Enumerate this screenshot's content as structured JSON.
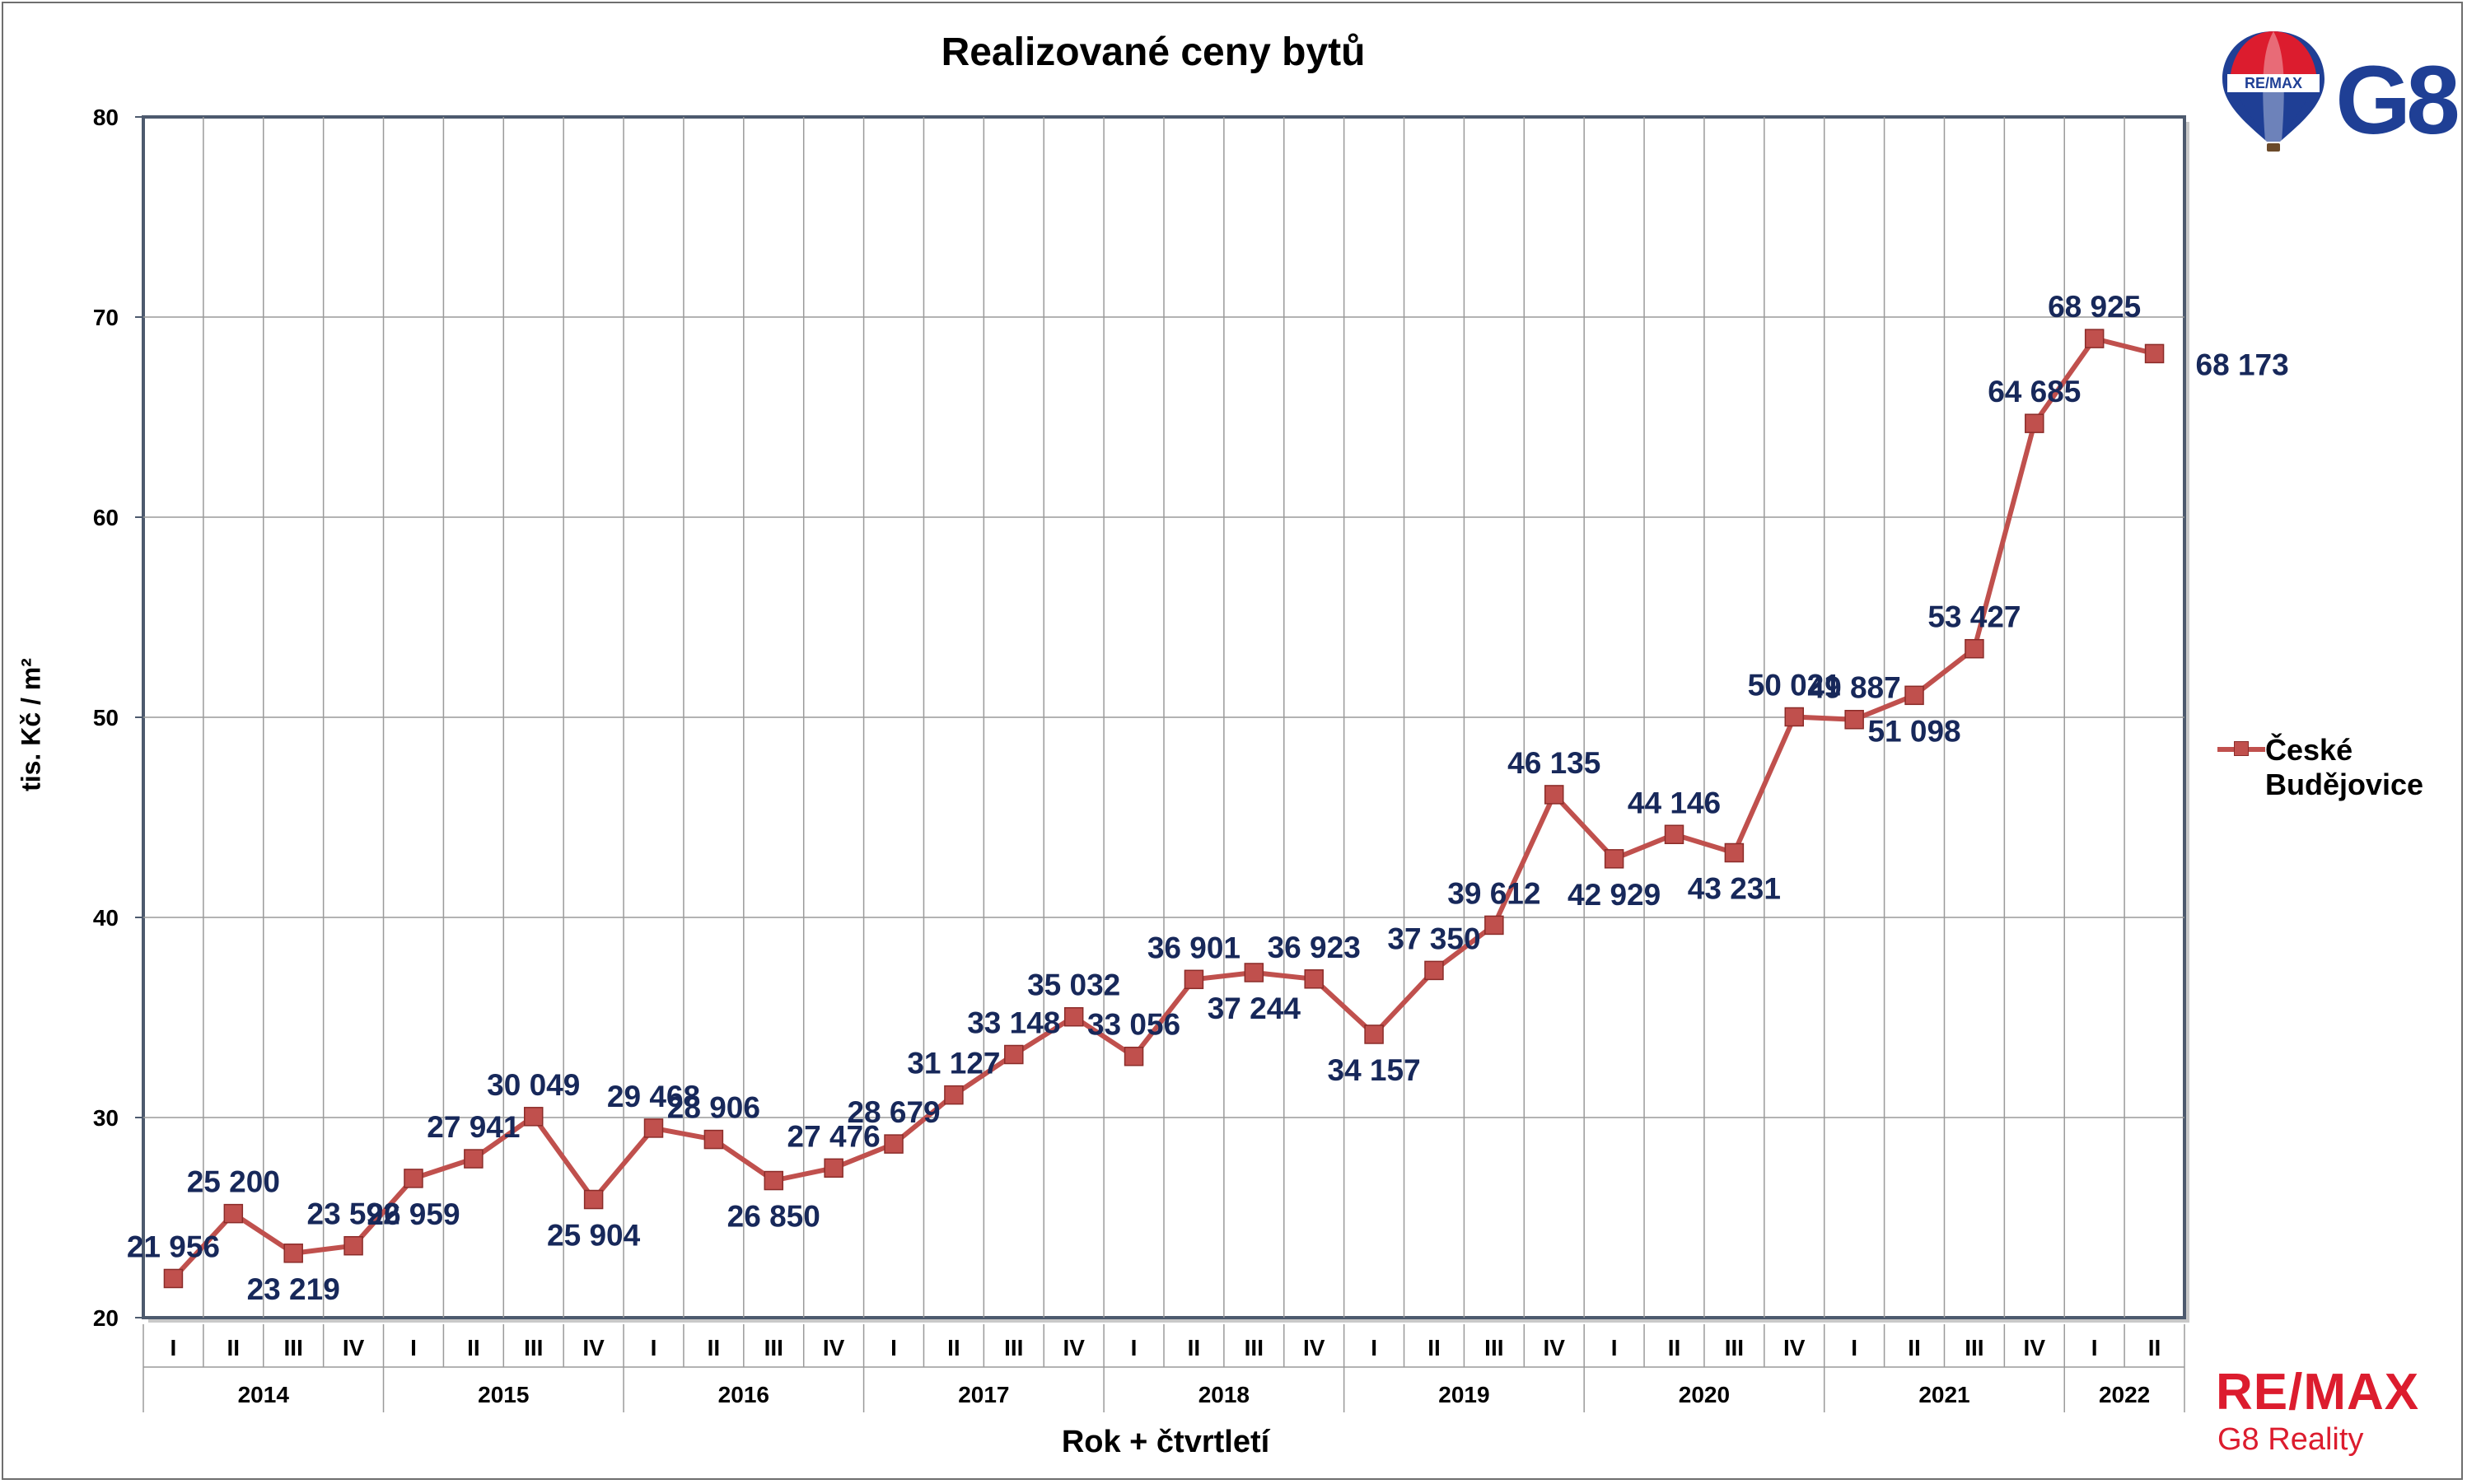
{
  "chart_data": {
    "type": "line",
    "title": "Realizované ceny bytů",
    "xlabel": "Rok + čtvrtletí",
    "ylabel": "tis. Kč / m²",
    "ylim": [
      20,
      80
    ],
    "yticks": [
      "20",
      "30",
      "40",
      "50",
      "60",
      "70",
      "80"
    ],
    "grid": true,
    "legend_position": "right",
    "series_color": "#c0504d",
    "label_color": "#17285a",
    "quarters": [
      "I",
      "II",
      "III",
      "IV",
      "I",
      "II",
      "III",
      "IV",
      "I",
      "II",
      "III",
      "IV",
      "I",
      "II",
      "III",
      "IV",
      "I",
      "II",
      "III",
      "IV",
      "I",
      "II",
      "III",
      "IV",
      "I",
      "II",
      "III",
      "IV",
      "I",
      "II",
      "III",
      "IV",
      "I",
      "II"
    ],
    "years": [
      "2014",
      "2015",
      "2016",
      "2017",
      "2018",
      "2019",
      "2020",
      "2021",
      "2022"
    ],
    "series": [
      {
        "name": "České Budějovice",
        "values": [
          21.956,
          25.2,
          23.219,
          23.592,
          26.959,
          27.941,
          30.049,
          25.904,
          29.468,
          28.906,
          26.85,
          27.476,
          28.679,
          31.127,
          33.148,
          35.032,
          33.056,
          36.901,
          37.244,
          36.923,
          34.157,
          37.35,
          39.612,
          46.135,
          42.929,
          44.146,
          43.231,
          50.021,
          49.887,
          51.098,
          53.427,
          64.685,
          68.925,
          68.173
        ],
        "labels": [
          "21 956",
          "25 200",
          "23 219",
          "23 592",
          "26 959",
          "27 941",
          "30 049",
          "25 904",
          "29 468",
          "28 906",
          "26 850",
          "27 476",
          "28 679",
          "31 127",
          "33 148",
          "35 032",
          "33 056",
          "36 901",
          "37 244",
          "36 923",
          "34 157",
          "37 350",
          "39 612",
          "46 135",
          "42 929",
          "44 146",
          "43 231",
          "50 021",
          "49 887",
          "51 098",
          "53 427",
          "64 685",
          "68 925",
          "68 173"
        ]
      }
    ]
  },
  "legend": {
    "label_line1": "České",
    "label_line2": "Budějovice"
  },
  "branding": {
    "balloon_text": "RE/MAX",
    "logo_text": "G8",
    "footer_brand": "RE/MAX",
    "footer_sub": "G8 Reality",
    "brand_red": "#dc1c2e",
    "brand_blue": "#1f3f95"
  }
}
